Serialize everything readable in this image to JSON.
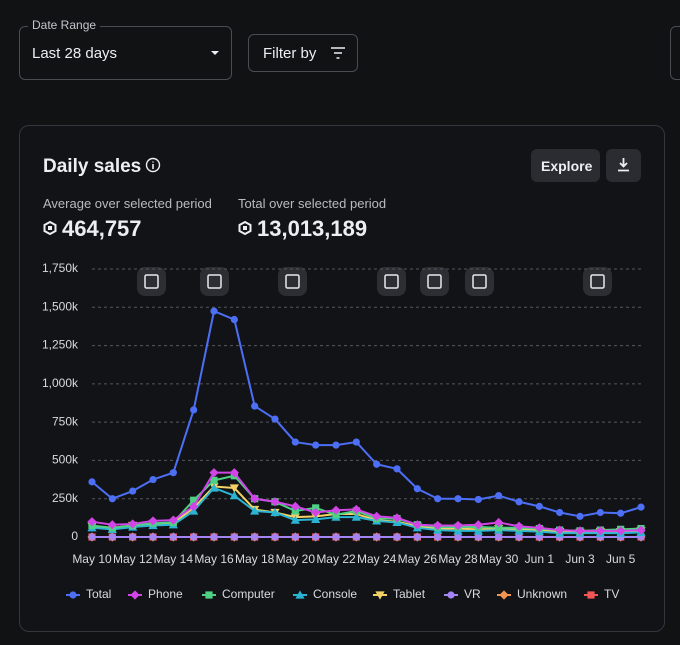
{
  "controls": {
    "date_range_label": "Date Range",
    "date_range_value": "Last 28 days",
    "filter": "Filter by"
  },
  "card": {
    "title": "Daily sales",
    "explore": "Explore",
    "stats": [
      {
        "label": "Average over selected period",
        "value": "464,757"
      },
      {
        "label": "Total over selected period",
        "value": "13,013,189"
      }
    ]
  },
  "chart_data": {
    "type": "line",
    "categories": [
      "May 10",
      null,
      "May 12",
      null,
      "May 14",
      null,
      "May 16",
      null,
      "May 18",
      null,
      "May 20",
      null,
      "May 22",
      null,
      "May 24",
      null,
      "May 26",
      null,
      "May 28",
      null,
      "May 30",
      null,
      "Jun 1",
      null,
      "Jun 3",
      null,
      "Jun 5",
      null
    ],
    "ylim": [
      0,
      1750000
    ],
    "yticks": [
      0,
      {
        "value": 250000,
        "label": "250k"
      },
      {
        "value": 500000,
        "label": "500k"
      },
      {
        "value": 750000,
        "label": "750k"
      },
      {
        "value": 1000000,
        "label": "1,000k"
      },
      {
        "value": 1250000,
        "label": "1,250k"
      },
      {
        "value": 1500000,
        "label": "1,500k"
      },
      {
        "value": 1750000,
        "label": "1,750k"
      }
    ],
    "grid": true,
    "legend": "bottom",
    "series": [
      {
        "name": "Total",
        "color": "#4d6ff5",
        "marker": "circle",
        "values": [
          360000,
          250000,
          300000,
          375000,
          420000,
          830000,
          1475000,
          1420000,
          855000,
          770000,
          620000,
          600000,
          600000,
          620000,
          475000,
          445000,
          315000,
          250000,
          250000,
          245000,
          270000,
          230000,
          200000,
          160000,
          135000,
          160000,
          155000,
          195000
        ]
      },
      {
        "name": "Phone",
        "color": "#d145e6",
        "marker": "diamond",
        "values": [
          100000,
          80000,
          85000,
          105000,
          110000,
          200000,
          420000,
          420000,
          250000,
          230000,
          200000,
          160000,
          175000,
          180000,
          135000,
          125000,
          80000,
          75000,
          75000,
          80000,
          95000,
          70000,
          60000,
          45000,
          40000,
          40000,
          40000,
          45000
        ]
      },
      {
        "name": "Computer",
        "color": "#4fd184",
        "marker": "square",
        "values": [
          75000,
          60000,
          75000,
          90000,
          95000,
          240000,
          370000,
          400000,
          250000,
          230000,
          170000,
          190000,
          145000,
          170000,
          120000,
          120000,
          80000,
          65000,
          65000,
          65000,
          60000,
          60000,
          55000,
          45000,
          40000,
          45000,
          50000,
          55000
        ]
      },
      {
        "name": "Console",
        "color": "#2bb3d3",
        "marker": "triangle",
        "values": [
          60000,
          50000,
          65000,
          75000,
          80000,
          170000,
          320000,
          270000,
          170000,
          160000,
          110000,
          115000,
          130000,
          130000,
          105000,
          95000,
          60000,
          45000,
          40000,
          40000,
          45000,
          40000,
          35000,
          25000,
          25000,
          25000,
          25000,
          30000
        ]
      },
      {
        "name": "Tablet",
        "color": "#f2d266",
        "marker": "triangle-down",
        "values": [
          70000,
          60000,
          75000,
          85000,
          90000,
          190000,
          330000,
          320000,
          180000,
          160000,
          130000,
          135000,
          150000,
          150000,
          110000,
          100000,
          70000,
          55000,
          55000,
          50000,
          55000,
          50000,
          45000,
          35000,
          30000,
          35000,
          35000,
          40000
        ]
      },
      {
        "name": "VR",
        "color": "#a484f2",
        "marker": "circle",
        "values": [
          0,
          0,
          0,
          0,
          0,
          0,
          0,
          0,
          0,
          0,
          0,
          0,
          0,
          0,
          0,
          0,
          0,
          0,
          0,
          0,
          0,
          0,
          0,
          0,
          0,
          0,
          0,
          0
        ]
      },
      {
        "name": "Unknown",
        "color": "#f29452",
        "marker": "diamond",
        "values": [
          0,
          0,
          0,
          0,
          0,
          0,
          0,
          0,
          0,
          0,
          0,
          0,
          0,
          0,
          0,
          0,
          0,
          0,
          0,
          0,
          0,
          0,
          0,
          0,
          0,
          0,
          0,
          0
        ]
      },
      {
        "name": "TV",
        "color": "#f25555",
        "marker": "square",
        "values": [
          0,
          0,
          0,
          0,
          0,
          0,
          0,
          0,
          0,
          0,
          0,
          0,
          0,
          0,
          0,
          0,
          0,
          0,
          0,
          0,
          0,
          0,
          0,
          0,
          0,
          0,
          0,
          0
        ]
      }
    ]
  }
}
